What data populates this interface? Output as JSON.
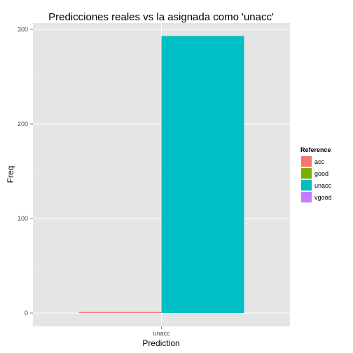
{
  "chart_data": {
    "type": "bar",
    "title": "Predicciones reales vs la asignada como 'unacc'",
    "xlabel": "Prediction",
    "ylabel": "Freq",
    "categories": [
      "unacc"
    ],
    "ylim": [
      0,
      300
    ],
    "yticks": [
      0,
      100,
      200,
      300
    ],
    "position": "dodge",
    "grid": true,
    "legend": {
      "title": "Reference",
      "placement": "right",
      "entries": [
        "acc",
        "good",
        "unacc",
        "vgood"
      ]
    },
    "series": [
      {
        "name": "acc",
        "color": "#F8766D",
        "values": [
          1
        ]
      },
      {
        "name": "good",
        "color": "#7CAE00",
        "values": [
          0
        ]
      },
      {
        "name": "unacc",
        "color": "#00BFC4",
        "values": [
          293
        ]
      },
      {
        "name": "vgood",
        "color": "#C77CFF",
        "values": [
          0
        ]
      }
    ]
  }
}
